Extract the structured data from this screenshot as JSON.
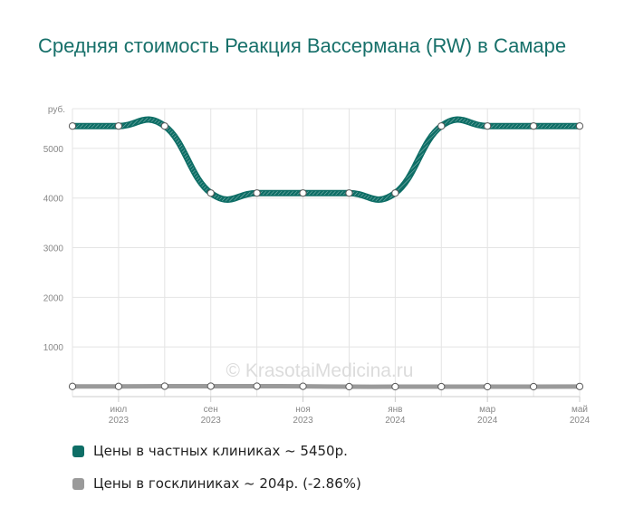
{
  "title": "Средняя стоимость Реакция Вассермана (RW) в Самаре",
  "watermark": "© KrasotaiMedicina.ru",
  "chart_data": {
    "type": "line",
    "ylabel": "руб.",
    "ylim": [
      0,
      5800
    ],
    "y_ticks": [
      1000,
      2000,
      3000,
      4000,
      5000
    ],
    "x": [
      "2023-06",
      "2023-07",
      "2023-08",
      "2023-09",
      "2023-10",
      "2023-11",
      "2023-12",
      "2024-01",
      "2024-02",
      "2024-03",
      "2024-04",
      "2024-05"
    ],
    "x_tick_labels": [
      {
        "index": 1,
        "month": "июл",
        "year": "2023"
      },
      {
        "index": 3,
        "month": "сен",
        "year": "2023"
      },
      {
        "index": 5,
        "month": "ноя",
        "year": "2023"
      },
      {
        "index": 7,
        "month": "янв",
        "year": "2024"
      },
      {
        "index": 9,
        "month": "мар",
        "year": "2024"
      },
      {
        "index": 11,
        "month": "май",
        "year": "2024"
      }
    ],
    "grid": true,
    "legend_position": "bottom",
    "series": [
      {
        "name": "Цены в частных клиниках ~ 5450р.",
        "color": "#0e6e66",
        "values": [
          5450,
          5450,
          5450,
          4100,
          4100,
          4100,
          4100,
          4100,
          5450,
          5450,
          5450,
          5450
        ]
      },
      {
        "name": "Цены в госклиниках ~ 204р. (-2.86%)",
        "color": "#9a9a9a",
        "values": [
          205,
          205,
          210,
          210,
          210,
          208,
          200,
          200,
          200,
          200,
          200,
          204
        ]
      }
    ]
  }
}
